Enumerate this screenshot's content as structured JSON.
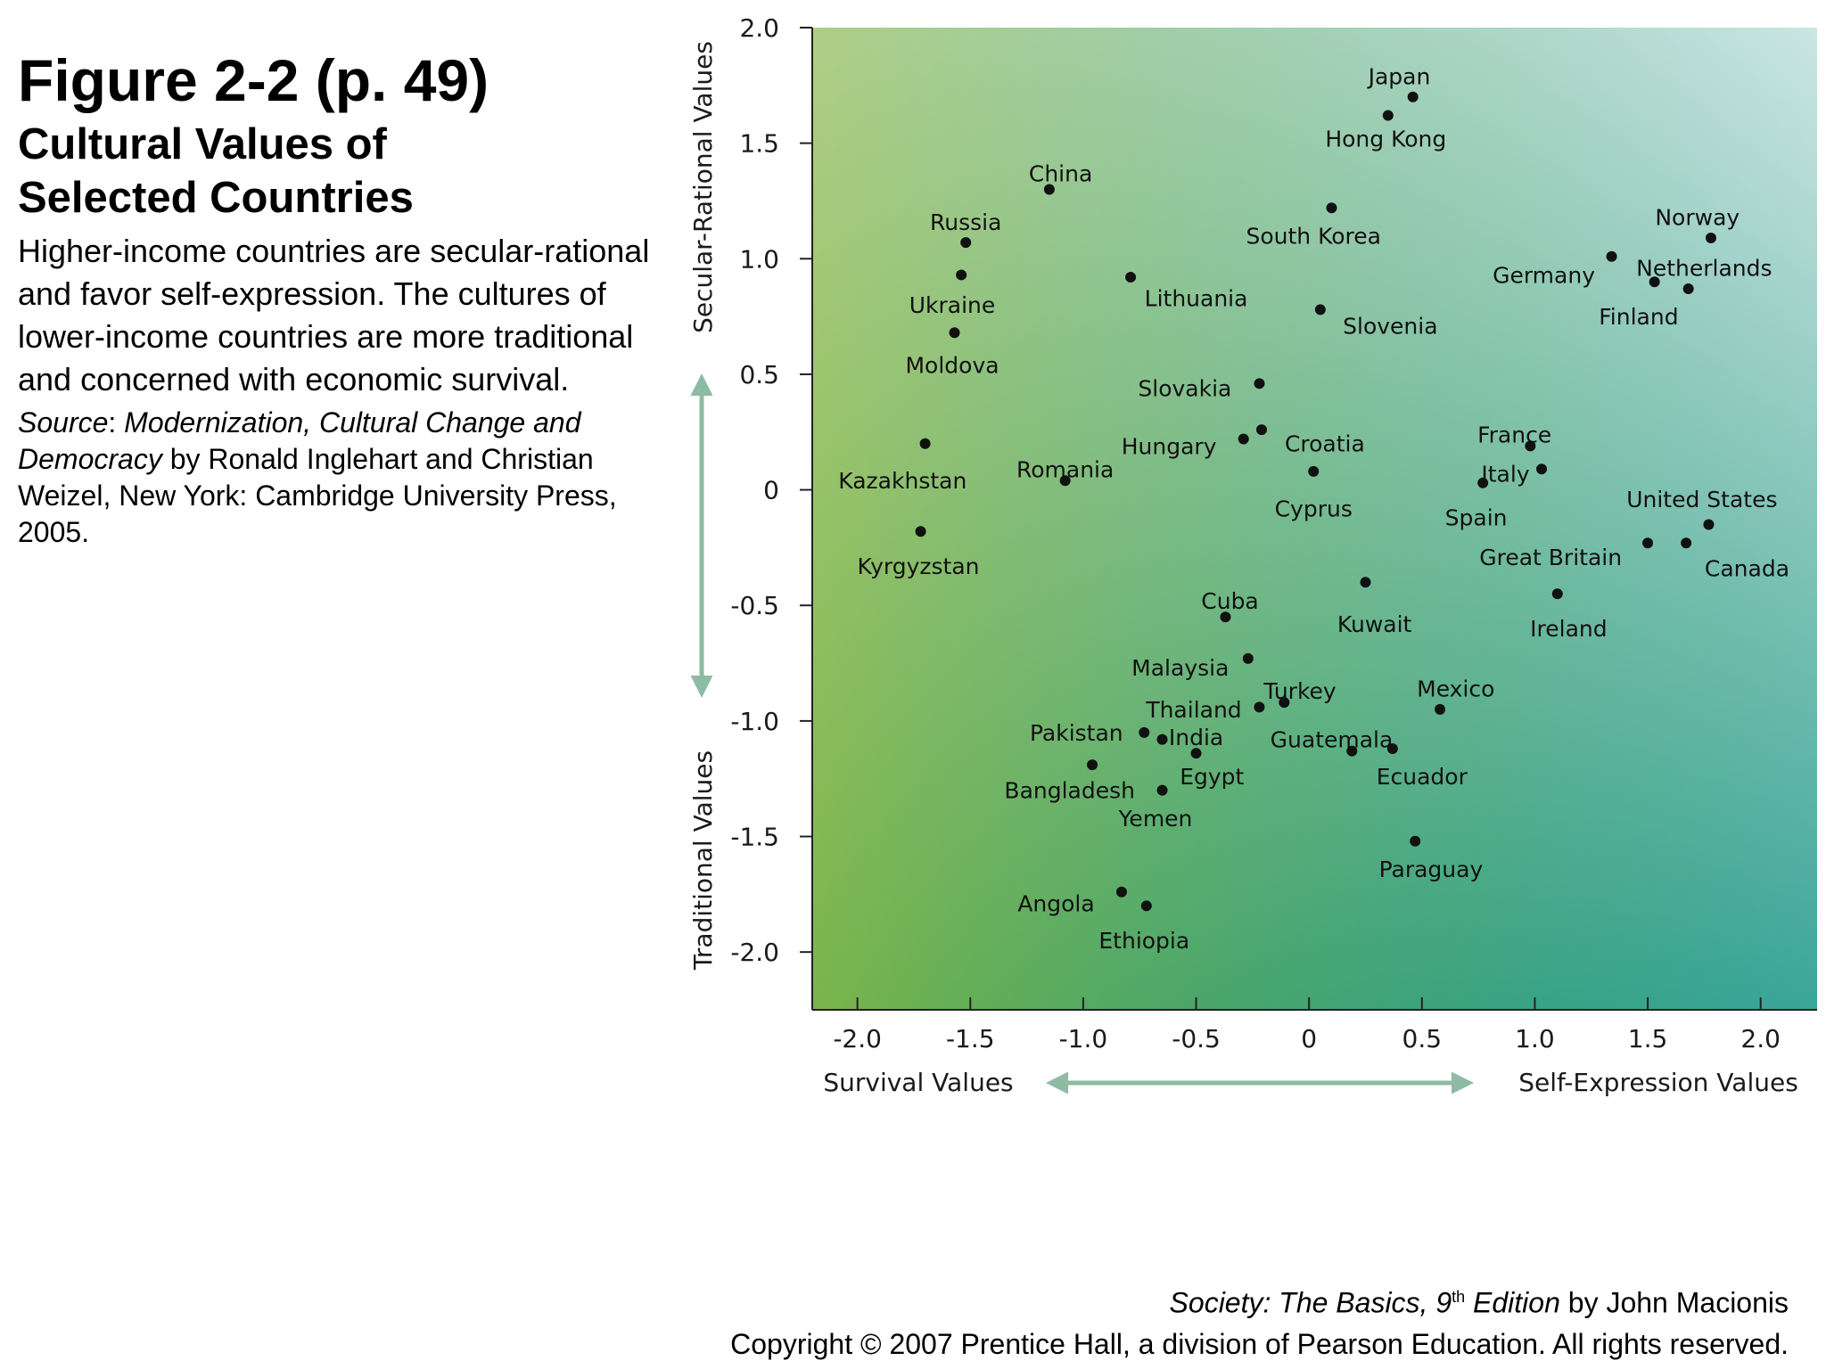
{
  "figure": {
    "title": "Figure 2-2  (p. 49)",
    "subtitle_line1": "Cultural Values of",
    "subtitle_line2": "Selected Countries",
    "description": "Higher-income countries are secular-rational and favor self-expression. The cultures of lower-income countries are more traditional and concerned with economic survival.",
    "source_label": "Source",
    "source_colon": ": ",
    "source_book": "Modernization, Cultural Change and Democracy",
    "source_rest": " by Ronald Inglehart and Christian Weizel, New York: Cambridge University Press, 2005."
  },
  "footer": {
    "book_title": "Society: The Basics, 9",
    "edition_sup": "th",
    "edition_word": " Edition",
    "author": " by John Macionis",
    "copyright": "Copyright © 2007 Prentice Hall, a division of Pearson Education. All rights reserved."
  },
  "chart_data": {
    "type": "scatter",
    "xlabel_left": "Survival Values",
    "xlabel_right": "Self-Expression Values",
    "ylabel_top": "Secular-Rational Values",
    "ylabel_bottom": "Traditional Values",
    "xlim": [
      -2.2,
      2.25
    ],
    "ylim": [
      -2.25,
      2.0
    ],
    "x_ticks": [
      -2.0,
      -1.5,
      -1.0,
      -0.5,
      0,
      0.5,
      1.0,
      1.5,
      2.0
    ],
    "x_tick_labels": [
      "-2.0",
      "-1.5",
      "-1.0",
      "-0.5",
      "0",
      "0.5",
      "1.0",
      "1.5",
      "2.0"
    ],
    "y_ticks": [
      2.0,
      1.5,
      1.0,
      0.5,
      0,
      -0.5,
      -1.0,
      -1.5,
      -2.0
    ],
    "y_tick_labels": [
      "2.0",
      "1.5",
      "1.0",
      "0.5",
      "0",
      "-0.5",
      "-1.0",
      "-1.5",
      "-2.0"
    ],
    "grid": false,
    "background_gradient": [
      "#e8dc38",
      "#0c8e5c",
      "#cfe8ec",
      "#0f98d0"
    ],
    "arrow_color": "#8dbba3",
    "point_color": "#111111",
    "points": [
      {
        "name": "Japan",
        "x": 0.46,
        "y": 1.7,
        "lx": 0.4,
        "ly": 1.79,
        "anchor": "middle"
      },
      {
        "name": "Hong Kong",
        "x": 0.35,
        "y": 1.62,
        "lx": 0.34,
        "ly": 1.52,
        "anchor": "middle"
      },
      {
        "name": "China",
        "x": -1.15,
        "y": 1.3,
        "lx": -1.1,
        "ly": 1.37,
        "anchor": "middle"
      },
      {
        "name": "South Korea",
        "x": 0.1,
        "y": 1.22,
        "lx": 0.02,
        "ly": 1.1,
        "anchor": "middle"
      },
      {
        "name": "Norway",
        "x": 1.78,
        "y": 1.09,
        "lx": 1.72,
        "ly": 1.18,
        "anchor": "middle"
      },
      {
        "name": "Russia",
        "x": -1.52,
        "y": 1.07,
        "lx": -1.52,
        "ly": 1.16,
        "anchor": "middle"
      },
      {
        "name": "Germany",
        "x": 1.34,
        "y": 1.01,
        "lx": 1.04,
        "ly": 0.93,
        "anchor": "middle"
      },
      {
        "name": "Netherlands",
        "x": 1.68,
        "y": 0.87,
        "lx": 1.75,
        "ly": 0.96,
        "anchor": "middle"
      },
      {
        "name": "Ukraine",
        "x": -1.54,
        "y": 0.93,
        "lx": -1.58,
        "ly": 0.8,
        "anchor": "middle"
      },
      {
        "name": "Lithuania",
        "x": -0.79,
        "y": 0.92,
        "lx": -0.5,
        "ly": 0.83,
        "anchor": "middle"
      },
      {
        "name": "Finland",
        "x": 1.53,
        "y": 0.9,
        "lx": 1.46,
        "ly": 0.75,
        "anchor": "middle"
      },
      {
        "name": "Slovenia",
        "x": 0.05,
        "y": 0.78,
        "lx": 0.36,
        "ly": 0.71,
        "anchor": "middle"
      },
      {
        "name": "Moldova",
        "x": -1.57,
        "y": 0.68,
        "lx": -1.58,
        "ly": 0.54,
        "anchor": "middle"
      },
      {
        "name": "Slovakia",
        "x": -0.22,
        "y": 0.46,
        "lx": -0.55,
        "ly": 0.44,
        "anchor": "middle"
      },
      {
        "name": "Croatia",
        "x": -0.21,
        "y": 0.26,
        "lx": 0.07,
        "ly": 0.2,
        "anchor": "middle"
      },
      {
        "name": "Hungary",
        "x": -0.29,
        "y": 0.22,
        "lx": -0.62,
        "ly": 0.19,
        "anchor": "middle"
      },
      {
        "name": "France",
        "x": 0.98,
        "y": 0.19,
        "lx": 0.91,
        "ly": 0.24,
        "anchor": "middle"
      },
      {
        "name": "Kazakhstan",
        "x": -1.7,
        "y": 0.2,
        "lx": -1.8,
        "ly": 0.04,
        "anchor": "middle"
      },
      {
        "name": "Italy",
        "x": 1.03,
        "y": 0.09,
        "lx": 0.87,
        "ly": 0.07,
        "anchor": "middle"
      },
      {
        "name": "Cyprus",
        "x": 0.02,
        "y": 0.08,
        "lx": 0.02,
        "ly": -0.08,
        "anchor": "middle"
      },
      {
        "name": "Romania",
        "x": -1.08,
        "y": 0.04,
        "lx": -1.08,
        "ly": 0.09,
        "anchor": "middle"
      },
      {
        "name": "Spain",
        "x": 0.77,
        "y": 0.03,
        "lx": 0.74,
        "ly": -0.12,
        "anchor": "middle"
      },
      {
        "name": "United States",
        "x": 1.77,
        "y": -0.15,
        "lx": 1.74,
        "ly": -0.04,
        "anchor": "middle"
      },
      {
        "name": "Kyrgyzstan",
        "x": -1.72,
        "y": -0.18,
        "lx": -1.73,
        "ly": -0.33,
        "anchor": "middle"
      },
      {
        "name": "Great Britain",
        "x": 1.5,
        "y": -0.23,
        "lx": 1.07,
        "ly": -0.29,
        "anchor": "middle"
      },
      {
        "name": "Canada",
        "x": 1.67,
        "y": -0.23,
        "lx": 1.94,
        "ly": -0.34,
        "anchor": "middle"
      },
      {
        "name": "Kuwait",
        "x": 0.25,
        "y": -0.4,
        "lx": 0.29,
        "ly": -0.58,
        "anchor": "middle"
      },
      {
        "name": "Ireland",
        "x": 1.1,
        "y": -0.45,
        "lx": 1.15,
        "ly": -0.6,
        "anchor": "middle"
      },
      {
        "name": "Cuba",
        "x": -0.37,
        "y": -0.55,
        "lx": -0.35,
        "ly": -0.48,
        "anchor": "middle"
      },
      {
        "name": "Malaysia",
        "x": -0.27,
        "y": -0.73,
        "lx": -0.57,
        "ly": -0.77,
        "anchor": "middle"
      },
      {
        "name": "Turkey",
        "x": -0.11,
        "y": -0.92,
        "lx": -0.04,
        "ly": -0.87,
        "anchor": "middle"
      },
      {
        "name": "Mexico",
        "x": 0.58,
        "y": -0.95,
        "lx": 0.65,
        "ly": -0.86,
        "anchor": "middle"
      },
      {
        "name": "Thailand",
        "x": -0.22,
        "y": -0.94,
        "lx": -0.51,
        "ly": -0.95,
        "anchor": "middle"
      },
      {
        "name": "Pakistan",
        "x": -0.73,
        "y": -1.05,
        "lx": -1.03,
        "ly": -1.05,
        "anchor": "middle"
      },
      {
        "name": "India",
        "x": -0.65,
        "y": -1.08,
        "lx": -0.5,
        "ly": -1.07,
        "anchor": "middle"
      },
      {
        "name": "Guatemala",
        "x": 0.19,
        "y": -1.13,
        "lx": 0.1,
        "ly": -1.08,
        "anchor": "middle"
      },
      {
        "name": "Ecuador",
        "x": 0.37,
        "y": -1.12,
        "lx": 0.5,
        "ly": -1.24,
        "anchor": "middle"
      },
      {
        "name": "Egypt",
        "x": -0.5,
        "y": -1.14,
        "lx": -0.43,
        "ly": -1.24,
        "anchor": "middle"
      },
      {
        "name": "Bangladesh",
        "x": -0.96,
        "y": -1.19,
        "lx": -1.06,
        "ly": -1.3,
        "anchor": "middle"
      },
      {
        "name": "Yemen",
        "x": -0.65,
        "y": -1.3,
        "lx": -0.68,
        "ly": -1.42,
        "anchor": "middle"
      },
      {
        "name": "Paraguay",
        "x": 0.47,
        "y": -1.52,
        "lx": 0.54,
        "ly": -1.64,
        "anchor": "middle"
      },
      {
        "name": "Angola",
        "x": -0.83,
        "y": -1.74,
        "lx": -1.12,
        "ly": -1.79,
        "anchor": "middle"
      },
      {
        "name": "Ethiopia",
        "x": -0.72,
        "y": -1.8,
        "lx": -0.73,
        "ly": -1.95,
        "anchor": "middle"
      }
    ]
  }
}
